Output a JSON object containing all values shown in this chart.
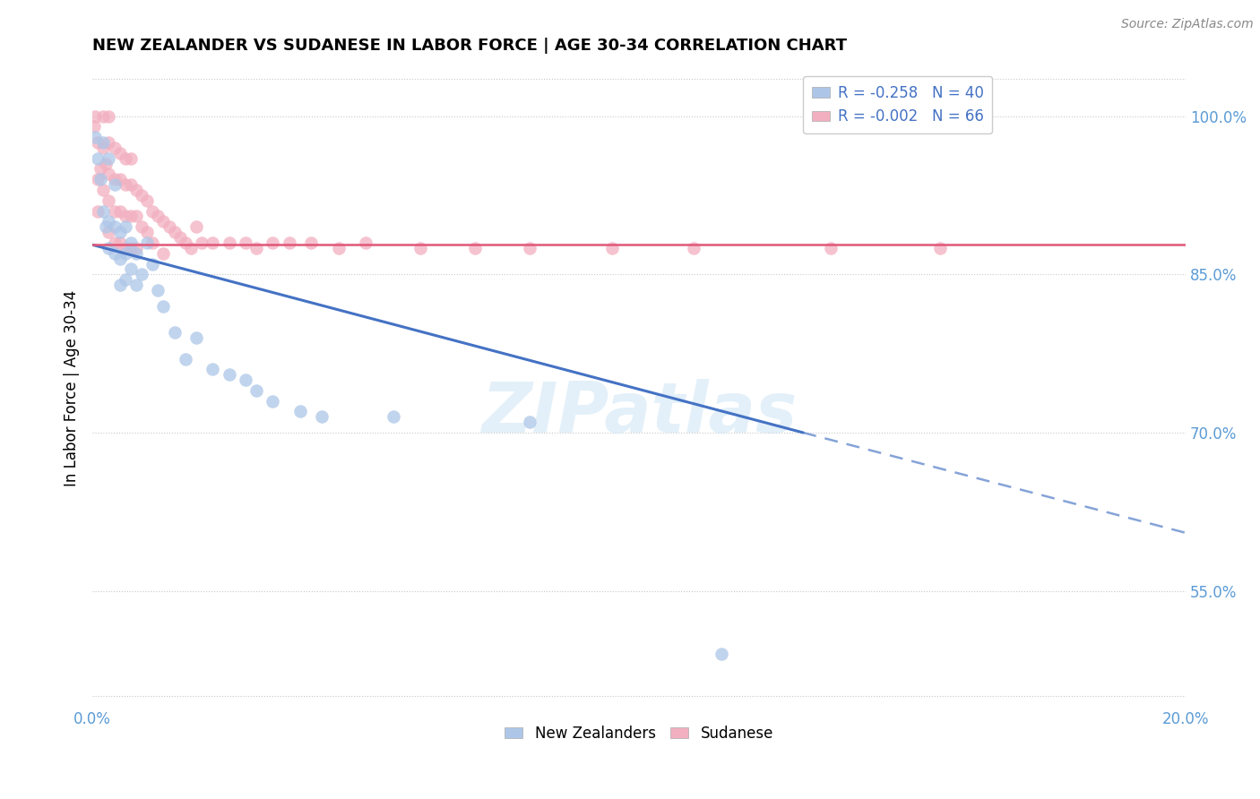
{
  "title": "NEW ZEALANDER VS SUDANESE IN LABOR FORCE | AGE 30-34 CORRELATION CHART",
  "source": "Source: ZipAtlas.com",
  "ylabel": "In Labor Force | Age 30-34",
  "xmin": 0.0,
  "xmax": 0.2,
  "ymin": 0.44,
  "ymax": 1.045,
  "nz_color": "#adc6e8",
  "sud_color": "#f2afc0",
  "nz_line_color": "#4472c4",
  "sud_line_color": "#e05878",
  "legend_nz_label": "R = -0.258   N = 40",
  "legend_sud_label": "R = -0.002   N = 66",
  "watermark": "ZIPatlas",
  "right_yticks": [
    0.55,
    0.7,
    0.85,
    1.0
  ],
  "right_ytick_labels": [
    "55.0%",
    "70.0%",
    "85.0%",
    "100.0%"
  ],
  "title_fontsize": 13,
  "tick_color": "#5b9bd5",
  "nz_trend_x0": 0.0,
  "nz_trend_y0": 0.878,
  "nz_trend_x1": 0.13,
  "nz_trend_y1": 0.7,
  "nz_trend_dash_x0": 0.13,
  "nz_trend_dash_y0": 0.7,
  "nz_trend_dash_x1": 0.2,
  "nz_trend_dash_y1": 0.605,
  "sud_trend_y": 0.878,
  "nz_scatter_x": [
    0.0005,
    0.001,
    0.0015,
    0.002,
    0.002,
    0.0025,
    0.003,
    0.003,
    0.003,
    0.004,
    0.004,
    0.004,
    0.005,
    0.005,
    0.005,
    0.006,
    0.006,
    0.006,
    0.007,
    0.007,
    0.008,
    0.008,
    0.009,
    0.01,
    0.011,
    0.012,
    0.013,
    0.015,
    0.017,
    0.019,
    0.022,
    0.025,
    0.028,
    0.03,
    0.033,
    0.038,
    0.042,
    0.055,
    0.08,
    0.115
  ],
  "nz_scatter_y": [
    0.98,
    0.96,
    0.94,
    0.975,
    0.91,
    0.895,
    0.96,
    0.9,
    0.875,
    0.935,
    0.895,
    0.87,
    0.89,
    0.865,
    0.84,
    0.895,
    0.87,
    0.845,
    0.88,
    0.855,
    0.87,
    0.84,
    0.85,
    0.88,
    0.86,
    0.835,
    0.82,
    0.795,
    0.77,
    0.79,
    0.76,
    0.755,
    0.75,
    0.74,
    0.73,
    0.72,
    0.715,
    0.715,
    0.71,
    0.49
  ],
  "sud_scatter_x": [
    0.0003,
    0.0005,
    0.001,
    0.001,
    0.001,
    0.0015,
    0.002,
    0.002,
    0.002,
    0.0025,
    0.003,
    0.003,
    0.003,
    0.003,
    0.003,
    0.004,
    0.004,
    0.004,
    0.004,
    0.005,
    0.005,
    0.005,
    0.005,
    0.006,
    0.006,
    0.006,
    0.006,
    0.007,
    0.007,
    0.007,
    0.007,
    0.008,
    0.008,
    0.008,
    0.009,
    0.009,
    0.01,
    0.01,
    0.011,
    0.011,
    0.012,
    0.013,
    0.013,
    0.014,
    0.015,
    0.016,
    0.017,
    0.018,
    0.019,
    0.02,
    0.022,
    0.025,
    0.028,
    0.03,
    0.033,
    0.036,
    0.04,
    0.045,
    0.05,
    0.06,
    0.07,
    0.08,
    0.095,
    0.11,
    0.135,
    0.155
  ],
  "sud_scatter_y": [
    0.99,
    1.0,
    0.975,
    0.94,
    0.91,
    0.95,
    1.0,
    0.97,
    0.93,
    0.955,
    1.0,
    0.975,
    0.945,
    0.92,
    0.89,
    0.97,
    0.94,
    0.91,
    0.88,
    0.965,
    0.94,
    0.91,
    0.88,
    0.96,
    0.935,
    0.905,
    0.875,
    0.96,
    0.935,
    0.905,
    0.875,
    0.93,
    0.905,
    0.875,
    0.925,
    0.895,
    0.92,
    0.89,
    0.91,
    0.88,
    0.905,
    0.9,
    0.87,
    0.895,
    0.89,
    0.885,
    0.88,
    0.875,
    0.895,
    0.88,
    0.88,
    0.88,
    0.88,
    0.875,
    0.88,
    0.88,
    0.88,
    0.875,
    0.88,
    0.875,
    0.875,
    0.875,
    0.875,
    0.875,
    0.875,
    0.875
  ]
}
